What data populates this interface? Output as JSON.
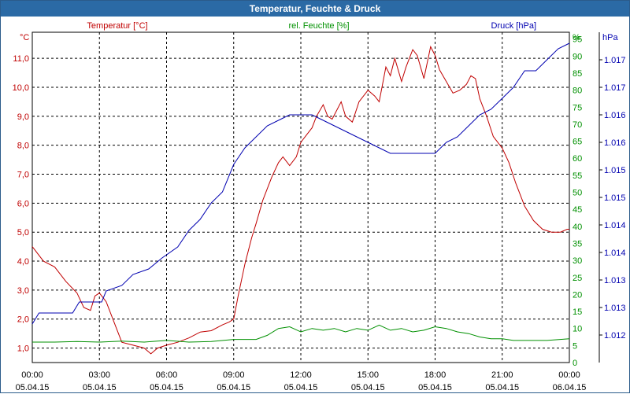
{
  "window": {
    "title": "Temperatur, Feuchte & Druck"
  },
  "colors": {
    "temperature": "#c00000",
    "humidity": "#009000",
    "pressure": "#0000b0",
    "title_bar": "#2b6aa5",
    "grid": "#000000"
  },
  "chart_data": {
    "type": "line",
    "title": "Temperatur, Feuchte & Druck",
    "x_hours": [
      0,
      24
    ],
    "x_ticks": [
      {
        "h": 0,
        "time": "00:00",
        "date": "05.04.15"
      },
      {
        "h": 3,
        "time": "03:00",
        "date": "05.04.15"
      },
      {
        "h": 6,
        "time": "06:00",
        "date": "05.04.15"
      },
      {
        "h": 9,
        "time": "09:00",
        "date": "05.04.15"
      },
      {
        "h": 12,
        "time": "12:00",
        "date": "05.04.15"
      },
      {
        "h": 15,
        "time": "15:00",
        "date": "05.04.15"
      },
      {
        "h": 18,
        "time": "18:00",
        "date": "05.04.15"
      },
      {
        "h": 21,
        "time": "21:00",
        "date": "05.04.15"
      },
      {
        "h": 24,
        "time": "00:00",
        "date": "06.04.15"
      }
    ],
    "axes": {
      "temperature": {
        "label": "Temperatur [°C]",
        "unit": "°C",
        "range": [
          0.5,
          11.9
        ],
        "ticks": [
          "1,0",
          "2,0",
          "3,0",
          "4,0",
          "5,0",
          "6,0",
          "7,0",
          "8,0",
          "9,0",
          "10,0",
          "11,0"
        ],
        "tick_values": [
          1,
          2,
          3,
          4,
          5,
          6,
          7,
          8,
          9,
          10,
          11
        ]
      },
      "humidity": {
        "label": "rel. Feuchte [%]",
        "unit": "%",
        "range": [
          0,
          97
        ],
        "ticks": [
          "0",
          "5",
          "10",
          "15",
          "20",
          "25",
          "30",
          "35",
          "40",
          "45",
          "50",
          "55",
          "60",
          "65",
          "70",
          "75",
          "80",
          "85",
          "90",
          "95"
        ],
        "tick_values": [
          0,
          5,
          10,
          15,
          20,
          25,
          30,
          35,
          40,
          45,
          50,
          55,
          60,
          65,
          70,
          75,
          80,
          85,
          90,
          95
        ]
      },
      "pressure": {
        "label": "Druck [hPa]",
        "unit": "hPa",
        "range": [
          1.0115,
          1.0175
        ],
        "ticks": [
          "1.012",
          "1.013",
          "1.013",
          "1.014",
          "1.014",
          "1.015",
          "1.015",
          "1.016",
          "1.016",
          "1.017",
          "1.017"
        ],
        "tick_values": [
          1.012,
          1.0125,
          1.013,
          1.0135,
          1.014,
          1.0145,
          1.015,
          1.0155,
          1.016,
          1.0165,
          1.017
        ]
      }
    },
    "series": [
      {
        "name": "Temperatur",
        "axis": "temperature",
        "points": [
          [
            0,
            4.5
          ],
          [
            0.5,
            4.0
          ],
          [
            1,
            3.8
          ],
          [
            1.5,
            3.3
          ],
          [
            2,
            2.9
          ],
          [
            2.3,
            2.4
          ],
          [
            2.6,
            2.3
          ],
          [
            2.8,
            2.8
          ],
          [
            3,
            2.9
          ],
          [
            3.3,
            2.6
          ],
          [
            3.6,
            2.0
          ],
          [
            4,
            1.2
          ],
          [
            4.5,
            1.1
          ],
          [
            5,
            1.0
          ],
          [
            5.3,
            0.8
          ],
          [
            5.6,
            1.0
          ],
          [
            6,
            1.1
          ],
          [
            6.5,
            1.2
          ],
          [
            7,
            1.35
          ],
          [
            7.5,
            1.55
          ],
          [
            8,
            1.6
          ],
          [
            8.5,
            1.8
          ],
          [
            8.8,
            1.9
          ],
          [
            9,
            2.0
          ],
          [
            9.2,
            2.8
          ],
          [
            9.5,
            3.9
          ],
          [
            9.8,
            4.8
          ],
          [
            10.0,
            5.3
          ],
          [
            10.3,
            6.1
          ],
          [
            10.7,
            6.9
          ],
          [
            11,
            7.4
          ],
          [
            11.2,
            7.6
          ],
          [
            11.5,
            7.3
          ],
          [
            11.8,
            7.6
          ],
          [
            12,
            8.1
          ],
          [
            12.3,
            8.4
          ],
          [
            12.5,
            8.6
          ],
          [
            12.7,
            9.0
          ],
          [
            13,
            9.4
          ],
          [
            13.2,
            9.0
          ],
          [
            13.4,
            8.9
          ],
          [
            13.8,
            9.5
          ],
          [
            14,
            9.0
          ],
          [
            14.3,
            8.8
          ],
          [
            14.6,
            9.5
          ],
          [
            15,
            9.9
          ],
          [
            15.3,
            9.7
          ],
          [
            15.5,
            9.5
          ],
          [
            15.8,
            10.7
          ],
          [
            16,
            10.4
          ],
          [
            16.2,
            11.0
          ],
          [
            16.5,
            10.2
          ],
          [
            16.7,
            10.7
          ],
          [
            17,
            11.3
          ],
          [
            17.2,
            11.1
          ],
          [
            17.5,
            10.3
          ],
          [
            17.8,
            11.4
          ],
          [
            18,
            11.1
          ],
          [
            18.2,
            10.6
          ],
          [
            18.5,
            10.2
          ],
          [
            18.8,
            9.8
          ],
          [
            19.1,
            9.9
          ],
          [
            19.4,
            10.1
          ],
          [
            19.6,
            10.4
          ],
          [
            19.8,
            10.3
          ],
          [
            20,
            9.6
          ],
          [
            20.3,
            9.0
          ],
          [
            20.6,
            8.3
          ],
          [
            21,
            7.9
          ],
          [
            21.3,
            7.4
          ],
          [
            21.6,
            6.7
          ],
          [
            22,
            5.9
          ],
          [
            22.4,
            5.4
          ],
          [
            22.8,
            5.1
          ],
          [
            23.2,
            5.0
          ],
          [
            23.6,
            5.0
          ],
          [
            23.9,
            5.1
          ],
          [
            24,
            5.1
          ]
        ]
      },
      {
        "name": "rel. Feuchte",
        "axis": "humidity",
        "points": [
          [
            0,
            6
          ],
          [
            1,
            6
          ],
          [
            2,
            6.2
          ],
          [
            3,
            6
          ],
          [
            4,
            6.3
          ],
          [
            5,
            6
          ],
          [
            6,
            6.5
          ],
          [
            7,
            6
          ],
          [
            8,
            6.2
          ],
          [
            9,
            6.8
          ],
          [
            10,
            6.8
          ],
          [
            10.5,
            8
          ],
          [
            11,
            10
          ],
          [
            11.5,
            10.5
          ],
          [
            12,
            9
          ],
          [
            12.5,
            10
          ],
          [
            13,
            9.5
          ],
          [
            13.5,
            10
          ],
          [
            14,
            9
          ],
          [
            14.5,
            10
          ],
          [
            15,
            9.5
          ],
          [
            15.5,
            11
          ],
          [
            16,
            9.5
          ],
          [
            16.5,
            10
          ],
          [
            17,
            9
          ],
          [
            17.5,
            9.5
          ],
          [
            18,
            10.5
          ],
          [
            18.5,
            10
          ],
          [
            19,
            9
          ],
          [
            19.5,
            8.5
          ],
          [
            20,
            7.5
          ],
          [
            20.5,
            7
          ],
          [
            21,
            7
          ],
          [
            21.5,
            6.5
          ],
          [
            22,
            6.5
          ],
          [
            23,
            6.5
          ],
          [
            24,
            7
          ]
        ]
      },
      {
        "name": "Druck",
        "axis": "pressure",
        "points": [
          [
            0,
            1.0122
          ],
          [
            0.3,
            1.0124
          ],
          [
            1.8,
            1.0124
          ],
          [
            2.1,
            1.0126
          ],
          [
            3.1,
            1.0126
          ],
          [
            3.3,
            1.0128
          ],
          [
            4,
            1.0129
          ],
          [
            4.5,
            1.0131
          ],
          [
            5.2,
            1.0132
          ],
          [
            5.8,
            1.0134
          ],
          [
            6.5,
            1.0136
          ],
          [
            7,
            1.0139
          ],
          [
            7.5,
            1.0141
          ],
          [
            8,
            1.0144
          ],
          [
            8.5,
            1.0146
          ],
          [
            9,
            1.0151
          ],
          [
            9.5,
            1.0154
          ],
          [
            10,
            1.0156
          ],
          [
            10.5,
            1.0158
          ],
          [
            11,
            1.0159
          ],
          [
            11.5,
            1.016
          ],
          [
            12,
            1.016
          ],
          [
            12.5,
            1.016
          ],
          [
            13,
            1.0159
          ],
          [
            13.5,
            1.0158
          ],
          [
            14,
            1.0157
          ],
          [
            14.5,
            1.0156
          ],
          [
            15,
            1.0155
          ],
          [
            15.5,
            1.0154
          ],
          [
            16,
            1.0153
          ],
          [
            16.5,
            1.0153
          ],
          [
            17,
            1.0153
          ],
          [
            17.5,
            1.0153
          ],
          [
            18,
            1.0153
          ],
          [
            18.5,
            1.0155
          ],
          [
            19,
            1.0156
          ],
          [
            19.5,
            1.0158
          ],
          [
            20,
            1.016
          ],
          [
            20.5,
            1.0161
          ],
          [
            21,
            1.0163
          ],
          [
            21.5,
            1.0165
          ],
          [
            22,
            1.0168
          ],
          [
            22.5,
            1.0168
          ],
          [
            23,
            1.017
          ],
          [
            23.5,
            1.0172
          ],
          [
            24,
            1.0173
          ]
        ]
      }
    ]
  }
}
